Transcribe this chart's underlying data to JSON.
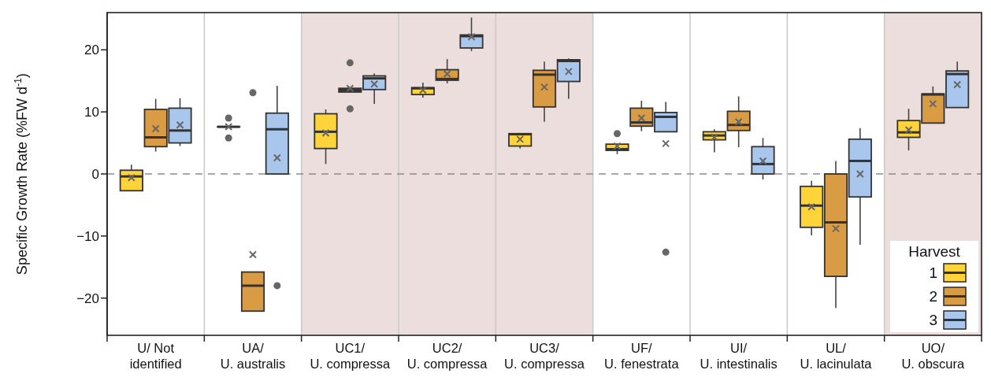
{
  "chart_data": {
    "type": "box",
    "ylabel": "Specific Growth Rate (%FW d$^{-1}$)",
    "categories": [
      "U/ Not\nidentified",
      "UA/\nU. australis",
      "UC1/\nU. compressa",
      "UC2/\nU. compressa",
      "UC3/\nU. compressa",
      "UF/\nU. fenestrata",
      "UI/\nU. intestinalis",
      "UL/\nU. lacinulata",
      "UO/\nU. obscura"
    ],
    "ylim": [
      -26,
      26
    ],
    "yticks": [
      -20,
      -10,
      0,
      10,
      20
    ],
    "grid": "x",
    "legend": "bottom right",
    "legend_title": "Harvest",
    "ref_lines": [
      {
        "axis": "y",
        "value": 0,
        "color": "#8c8c8c",
        "line_style": "dashed"
      }
    ],
    "bands": [
      {
        "axis": "x",
        "from": "UC1/\nU. compressa",
        "to": "UC3/\nU. compressa",
        "color": "#ecdedd"
      },
      {
        "axis": "x",
        "from": "UO/\nU. obscura",
        "to": "UO/\nU. obscura",
        "color": "#ecdedd"
      }
    ],
    "series": [
      {
        "name": "1",
        "color": "#ffd43b",
        "boxes": [
          {
            "low": -2.7,
            "q1": -2.7,
            "median": -0.4,
            "q3": 0.6,
            "high": 1.5,
            "mean": -0.6
          },
          {
            "low": 7.6,
            "q1": 7.6,
            "median": 7.6,
            "q3": 7.6,
            "high": 7.6,
            "mean": 7.6,
            "outliers": [
              9.0,
              5.8
            ]
          },
          {
            "low": 1.6,
            "q1": 4.1,
            "median": 6.8,
            "q3": 9.7,
            "high": 10.4,
            "mean": 6.6
          },
          {
            "low": 12.3,
            "q1": 12.8,
            "median": 13.8,
            "q3": 13.9,
            "high": 14.7,
            "mean": 13.5
          },
          {
            "low": 4.1,
            "q1": 4.5,
            "median": 6.4,
            "q3": 6.5,
            "high": 6.6,
            "mean": 5.6
          },
          {
            "low": 3.2,
            "q1": 3.8,
            "median": 4.0,
            "q3": 4.8,
            "high": 4.8,
            "mean": 4.5,
            "outliers": [
              6.5
            ]
          },
          {
            "low": 3.5,
            "q1": 5.5,
            "median": 6.2,
            "q3": 6.8,
            "high": 7.2,
            "mean": 5.9
          },
          {
            "low": -9.9,
            "q1": -8.6,
            "median": -5.1,
            "q3": -2.0,
            "high": -1.1,
            "mean": -5.3
          },
          {
            "low": 3.8,
            "q1": 5.9,
            "median": 6.7,
            "q3": 8.6,
            "high": 10.5,
            "mean": 7.1
          }
        ]
      },
      {
        "name": "2",
        "color": "#d99c45",
        "boxes": [
          {
            "low": 3.6,
            "q1": 4.4,
            "median": 5.9,
            "q3": 10.4,
            "high": 12.1,
            "mean": 7.3
          },
          {
            "low": -22.1,
            "q1": -22.1,
            "median": -18.0,
            "q3": -15.8,
            "high": -15.8,
            "mean": -13.0,
            "outliers": [
              13.1
            ]
          },
          {
            "low": 13.2,
            "q1": 13.2,
            "median": 13.5,
            "q3": 13.8,
            "high": 13.8,
            "mean": 13.8,
            "outliers": [
              17.9,
              10.5
            ]
          },
          {
            "low": 14.6,
            "q1": 15.1,
            "median": 15.3,
            "q3": 16.8,
            "high": 18.5,
            "mean": 16.1
          },
          {
            "low": 8.4,
            "q1": 10.8,
            "median": 16.0,
            "q3": 16.7,
            "high": 18.1,
            "mean": 14.0
          },
          {
            "low": 6.9,
            "q1": 7.7,
            "median": 8.3,
            "q3": 10.6,
            "high": 11.8,
            "mean": 9.0
          },
          {
            "low": 4.3,
            "q1": 7.0,
            "median": 7.9,
            "q3": 10.1,
            "high": 12.5,
            "mean": 8.4
          },
          {
            "low": -21.6,
            "q1": -16.5,
            "median": -7.8,
            "q3": 0,
            "high": 2.1,
            "mean": -8.8
          },
          {
            "low": 8.2,
            "q1": 8.2,
            "median": 12.8,
            "q3": 12.9,
            "high": 14.1,
            "mean": 11.3
          }
        ]
      },
      {
        "name": "3",
        "color": "#a9c6ec",
        "boxes": [
          {
            "low": 4.5,
            "q1": 5.0,
            "median": 7.0,
            "q3": 10.6,
            "high": 12.2,
            "mean": 7.9
          },
          {
            "low": 0,
            "q1": 0,
            "median": 7.2,
            "q3": 9.8,
            "high": 14.2,
            "mean": 2.6,
            "outliers": [
              -18.0
            ]
          },
          {
            "low": 11.3,
            "q1": 13.6,
            "median": 15.4,
            "q3": 15.8,
            "high": 16.2,
            "mean": 14.5
          },
          {
            "low": 19.8,
            "q1": 20.3,
            "median": 22.2,
            "q3": 22.4,
            "high": 25.2,
            "mean": 22.1
          },
          {
            "low": 12.1,
            "q1": 14.9,
            "median": 18.2,
            "q3": 18.4,
            "high": 18.6,
            "mean": 16.5
          },
          {
            "low": 6.8,
            "q1": 6.8,
            "median": 9.2,
            "q3": 9.9,
            "high": 11.6,
            "mean": 4.9,
            "outliers": [
              -12.6
            ]
          },
          {
            "low": -0.9,
            "q1": 0,
            "median": 1.6,
            "q3": 4.4,
            "high": 5.8,
            "mean": 2.1
          },
          {
            "low": -11.4,
            "q1": -3.7,
            "median": 2.1,
            "q3": 5.6,
            "high": 7.4,
            "mean": 0.0
          },
          {
            "low": 10.7,
            "q1": 10.7,
            "median": 16.1,
            "q3": 16.6,
            "high": 18.1,
            "mean": 14.4
          }
        ]
      }
    ]
  }
}
